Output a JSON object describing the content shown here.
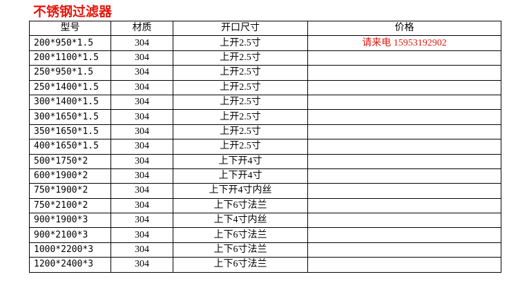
{
  "title": "不锈钢过滤器",
  "table": {
    "header": [
      "型号",
      "材质",
      "开口尺寸",
      "价格"
    ],
    "price_note": "请来电 15953192902",
    "rows": [
      [
        "200*950*1.5",
        "304",
        "上开2.5寸"
      ],
      [
        "200*1100*1.5",
        "304",
        "上开2.5寸"
      ],
      [
        "250*950*1.5",
        "304",
        "上开2.5寸"
      ],
      [
        "250*1400*1.5",
        "304",
        "上开2.5寸"
      ],
      [
        "300*1400*1.5",
        "304",
        "上开2.5寸"
      ],
      [
        "300*1650*1.5",
        "304",
        "上开2.5寸"
      ],
      [
        "350*1650*1.5",
        "304",
        "上开2.5寸"
      ],
      [
        "400*1650*1.5",
        "304",
        "上开2.5寸"
      ],
      [
        "500*1750*2",
        "304",
        "上下开4寸"
      ],
      [
        "600*1900*2",
        "304",
        "上下开4寸"
      ],
      [
        "750*1900*2",
        "304",
        "上下开4寸内丝"
      ],
      [
        "750*2100*2",
        "304",
        "上下6寸法兰"
      ],
      [
        "900*1900*3",
        "304",
        "上下4寸内丝"
      ],
      [
        "900*2100*3",
        "304",
        "上下6寸法兰"
      ],
      [
        "1000*2200*3",
        "304",
        "上下6寸法兰"
      ],
      [
        "1200*2400*3",
        "304",
        "上下6寸法兰"
      ]
    ]
  }
}
